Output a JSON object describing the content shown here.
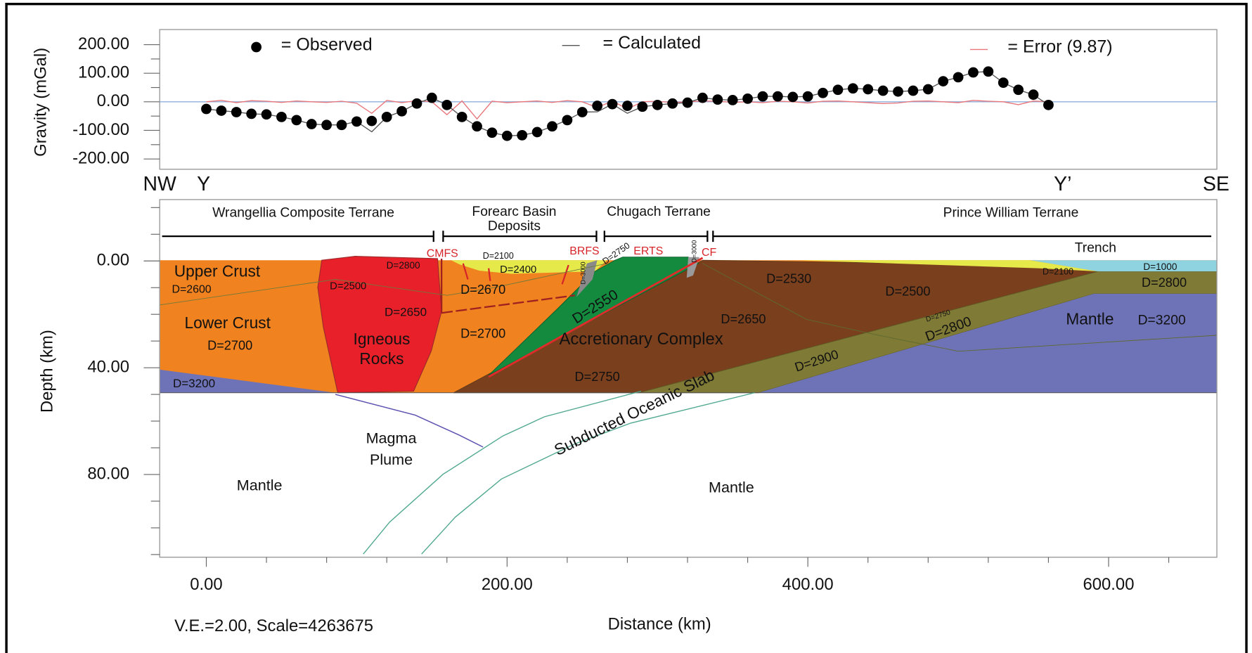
{
  "chart_data": [
    {
      "type": "line",
      "y_label": "Gravity (mGal)",
      "profile_labels": [
        "NW",
        "Y",
        "Y’",
        "SE"
      ],
      "x": [
        0,
        10,
        20,
        30,
        40,
        50,
        60,
        70,
        80,
        90,
        100,
        110,
        120,
        130,
        140,
        150,
        160,
        170,
        180,
        190,
        200,
        210,
        220,
        230,
        240,
        250,
        260,
        270,
        280,
        290,
        300,
        310,
        320,
        330,
        340,
        350,
        360,
        370,
        380,
        390,
        400,
        410,
        420,
        430,
        440,
        450,
        460,
        470,
        480,
        490,
        500,
        510,
        520,
        530,
        540,
        550,
        560
      ],
      "xlim": [
        -31,
        672
      ],
      "ylim": [
        -236,
        253
      ],
      "yticks": [
        {
          "value": 200,
          "label": "200.00"
        },
        {
          "value": 100,
          "label": "100.00"
        },
        {
          "value": 0,
          "label": "0.00"
        },
        {
          "value": -100,
          "label": "-100.00"
        },
        {
          "value": -200,
          "label": "-200.00"
        }
      ],
      "yminorticks": [
        150,
        50,
        -50,
        -150
      ],
      "zero_line": true,
      "zero_line_color": "#8fb0dc",
      "series": [
        {
          "name": "= Error (9.87)",
          "color": "#e8767a",
          "style": "line",
          "values": [
            0,
            5,
            -3,
            4,
            2,
            -2,
            3,
            0,
            -2,
            2,
            -5,
            -40,
            5,
            -3,
            4,
            0,
            -45,
            3,
            -60,
            2,
            -3,
            0,
            3,
            -2,
            4,
            0,
            -20,
            3,
            -25,
            0,
            2,
            -3,
            0,
            3,
            2,
            -2,
            0,
            -3,
            2,
            0,
            -4,
            2,
            3,
            0,
            -3,
            -6,
            -4,
            2,
            3,
            0,
            -3,
            5,
            2,
            0,
            -10,
            3,
            0
          ]
        },
        {
          "name": "= Calculated",
          "color": "#555555",
          "style": "line",
          "values": [
            -25,
            -31,
            -36,
            -42,
            -44,
            -53,
            -64,
            -78,
            -81,
            -81,
            -69,
            -105,
            -53,
            -33,
            -6,
            14,
            -11,
            -53,
            -86,
            -108,
            -119,
            -117,
            -106,
            -86,
            -64,
            -36,
            -35,
            -8,
            -40,
            -17,
            -11,
            -6,
            -3,
            14,
            8,
            6,
            11,
            19,
            19,
            17,
            19,
            31,
            42,
            47,
            44,
            39,
            36,
            39,
            44,
            72,
            86,
            103,
            106,
            67,
            42,
            25,
            -11
          ]
        },
        {
          "name": "= Observed",
          "color": "#000000",
          "style": "dots",
          "values": [
            -25,
            -31,
            -36,
            -42,
            -44,
            -53,
            -64,
            -78,
            -81,
            -81,
            -69,
            -67,
            -53,
            -33,
            -6,
            14,
            -11,
            -53,
            -86,
            -108,
            -119,
            -117,
            -106,
            -86,
            -64,
            -36,
            -14,
            -8,
            -14,
            -17,
            -11,
            -6,
            -3,
            14,
            8,
            6,
            11,
            19,
            19,
            17,
            19,
            31,
            42,
            47,
            44,
            39,
            36,
            39,
            44,
            72,
            86,
            103,
            106,
            67,
            42,
            25,
            -11
          ]
        }
      ]
    },
    {
      "type": "cross-section",
      "x_label": "Distance (km)",
      "y_label": "Depth (km)",
      "note": "V.E.=2.00, Scale=4263675",
      "xlim": [
        -31,
        672
      ],
      "xticks": [
        {
          "value": 0,
          "label": "0.00"
        },
        {
          "value": 200,
          "label": "200.00"
        },
        {
          "value": 400,
          "label": "400.00"
        },
        {
          "value": 600,
          "label": "600.00"
        }
      ],
      "xminorticks": [
        40,
        80,
        120,
        160,
        240,
        280,
        320,
        360,
        440,
        480,
        520,
        560,
        640
      ],
      "ylim": [
        -23,
        111
      ],
      "yticks": [
        {
          "value": 0,
          "label": "0.00"
        },
        {
          "value": 40,
          "label": "40.00"
        },
        {
          "value": 80,
          "label": "80.00"
        }
      ],
      "yminorticks": [
        -20,
        -10,
        10,
        20,
        30,
        50,
        60,
        70,
        90,
        100,
        110
      ],
      "terranes": [
        "Wrangellia Composite Terrane",
        "Forearc Basin",
        "Deposits",
        "Chugach Terrane",
        "Prince William Terrane",
        "Trench"
      ],
      "faults": [
        "CMFS",
        "BRFS",
        "ERTS",
        "CF"
      ],
      "units": [
        "Upper Crust",
        "D=2600",
        "Lower Crust",
        "D=2700",
        "D=3200",
        "D=2800",
        "D=2500",
        "D=2650",
        "Igneous",
        "Rocks",
        "D=2100",
        "D=2400",
        "D=2670",
        "D=2700",
        "D=3000",
        "D=2750",
        "D=3000",
        "D=2550",
        "Accretionary Complex",
        "D=2750",
        "D=2530",
        "D=2650",
        "D=2500",
        "D=2100",
        "D=1000",
        "D=2800",
        "Mantle",
        "D=3200",
        "D=2750",
        "D=2800",
        "D=2900",
        "Subducted Oceanic Slab",
        "Magma",
        "Plume",
        "Mantle",
        "Mantle"
      ]
    }
  ]
}
